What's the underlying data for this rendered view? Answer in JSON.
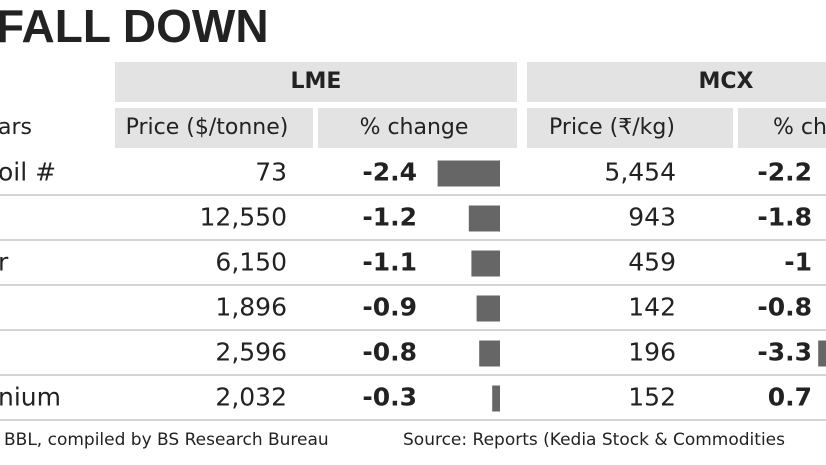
{
  "title": "FALL DOWN",
  "groups": [
    "LME",
    "MCX"
  ],
  "columns": [
    "ars",
    "Price ($/tonne)",
    "% change",
    "Price (₹/kg)",
    "% ch"
  ],
  "rows": [
    {
      "label": "oil #",
      "lme_price": "73",
      "lme_change": -2.4,
      "mcx_price": "5,454",
      "mcx_change": -2.2
    },
    {
      "lme_price": "12,550",
      "lme_change": -1.2,
      "mcx_price": "943",
      "mcx_change": -1.8
    },
    {
      "label": "r",
      "lme_price": "6,150",
      "lme_change": -1.1,
      "mcx_price": "459",
      "mcx_change": -1.0
    },
    {
      "lme_price": "1,896",
      "lme_change": -0.9,
      "mcx_price": "142",
      "mcx_change": -0.8
    },
    {
      "lme_price": "2,596",
      "lme_change": -0.8,
      "mcx_price": "196",
      "mcx_change": -3.3
    },
    {
      "label": "nium",
      "lme_price": "2,032",
      "lme_change": -0.3,
      "mcx_price": "152",
      "mcx_change": 0.7
    }
  ],
  "footer": {
    "left": "BBL, compiled by BS Research Bureau",
    "right": "Source: Reports (Kedia Stock & Commodities"
  }
}
